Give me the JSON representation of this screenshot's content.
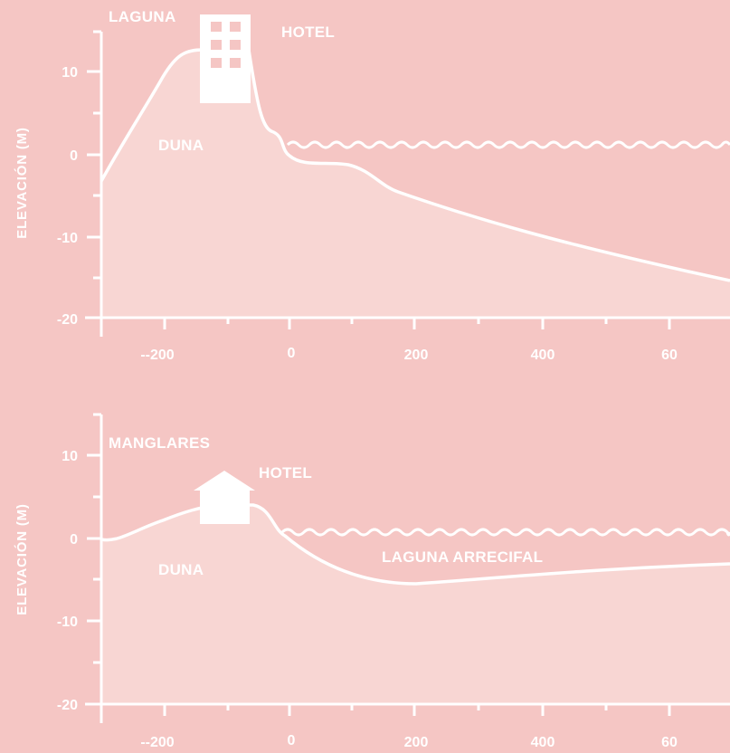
{
  "colors": {
    "background": "#f5c6c4",
    "ground_fill": "#f8d6d3",
    "line": "#ffffff"
  },
  "panels": [
    {
      "ylabel": "ELEVACIÓN (M)",
      "y_ticks": [
        "10",
        "0",
        "-10",
        "-20"
      ],
      "x_ticks": [
        "--200",
        "0",
        "200",
        "400",
        "60"
      ],
      "labels": {
        "lagoon": "LAGUNA",
        "hotel": "HOTEL",
        "dune": "DUNA"
      },
      "icon": "hotel-building-icon"
    },
    {
      "ylabel": "ELEVACIÓN (M)",
      "y_ticks": [
        "10",
        "0",
        "-10",
        "-20"
      ],
      "x_ticks": [
        "--200",
        "0",
        "200",
        "400",
        "60"
      ],
      "labels": {
        "mangroves": "MANGLARES",
        "hotel": "HOTEL",
        "dune": "DUNA",
        "reef_lagoon": "LAGUNA ARRECIFAL"
      },
      "icon": "house-icon"
    }
  ]
}
